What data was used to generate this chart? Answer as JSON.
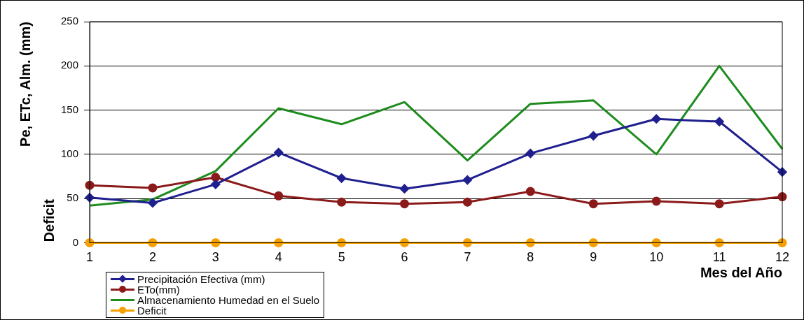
{
  "chart_data": {
    "type": "line",
    "xlabel": "Mes del Año",
    "ylabel": "Pe, ETc, Alm. (mm)",
    "annotations": [
      "Deficit"
    ],
    "x": [
      1,
      2,
      3,
      4,
      5,
      6,
      7,
      8,
      9,
      10,
      11,
      12
    ],
    "xlim": [
      1,
      12
    ],
    "xticks": [
      1,
      2,
      3,
      4,
      5,
      6,
      7,
      8,
      9,
      10,
      11,
      12
    ],
    "ylim": [
      0,
      250
    ],
    "yticks": [
      0,
      50,
      100,
      150,
      200,
      250
    ],
    "grid": "y",
    "legend": "bottom left",
    "line_style": "solid",
    "series": [
      {
        "name": "Precipitación Efectiva (mm)",
        "color": "#1f1f8f",
        "marker": "diamond",
        "values": [
          51,
          45,
          66,
          102,
          73,
          61,
          71,
          101,
          121,
          140,
          137,
          80
        ]
      },
      {
        "name": "ETo(mm)",
        "color": "#8b1a1a",
        "marker": "circle",
        "values": [
          65,
          62,
          74,
          53,
          46,
          44,
          46,
          58,
          44,
          47,
          44,
          52
        ]
      },
      {
        "name": "Almacenamiento Humedad en el Suelo",
        "color": "#1e8c1e",
        "marker": "none",
        "values": [
          42,
          49,
          81,
          152,
          134,
          159,
          93,
          157,
          161,
          100,
          200,
          106
        ]
      },
      {
        "name": "Deficit",
        "color": "#f5a000",
        "marker": "circle",
        "values": [
          0,
          0,
          0,
          0,
          0,
          0,
          0,
          0,
          0,
          0,
          0,
          0
        ]
      }
    ]
  }
}
